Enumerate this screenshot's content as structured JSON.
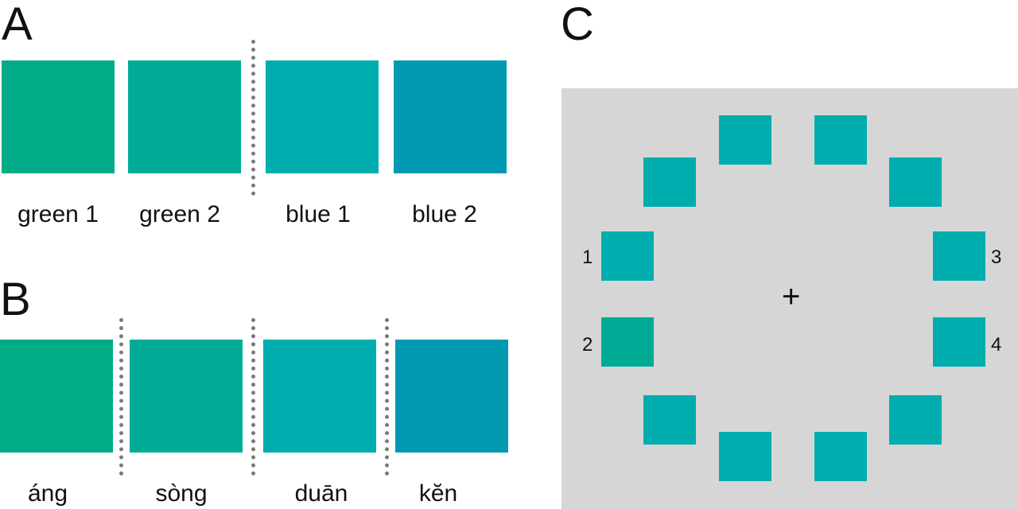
{
  "panels": {
    "a": {
      "letter": "A",
      "swatches": [
        {
          "label": "green 1",
          "color": "#00ab86"
        },
        {
          "label": "green 2",
          "color": "#00ab96"
        },
        {
          "label": "blue 1",
          "color": "#00adae"
        },
        {
          "label": "blue 2",
          "color": "#0099b1"
        }
      ]
    },
    "b": {
      "letter": "B",
      "swatches": [
        {
          "label": "áng",
          "color": "#00ab86"
        },
        {
          "label": "sòng",
          "color": "#00ab96"
        },
        {
          "label": "duān",
          "color": "#00adae"
        },
        {
          "label": "kĕn",
          "color": "#0099b1"
        }
      ]
    },
    "c": {
      "letter": "C",
      "background": "#d6d6d6",
      "ring_color": "#00adae",
      "odd_color": "#00ab96",
      "fixation": "+",
      "numbers": [
        "1",
        "2",
        "3",
        "4"
      ]
    }
  }
}
